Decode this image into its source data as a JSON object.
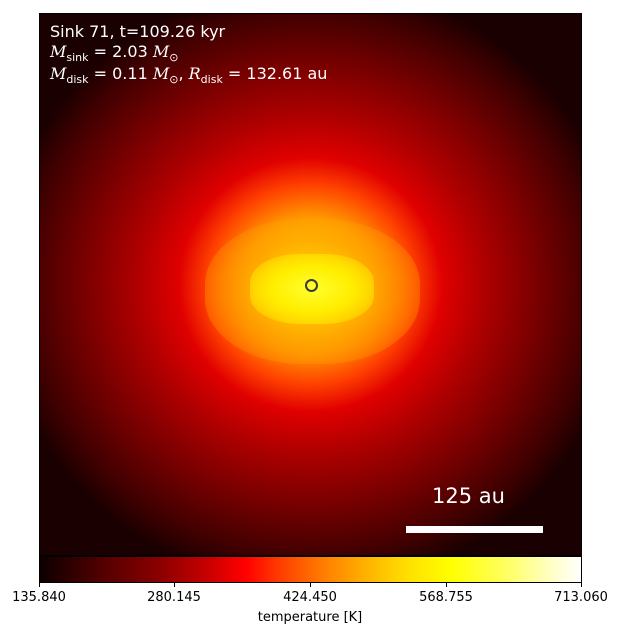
{
  "annotations": {
    "sink_line": "Sink 71, t=109.26 kyr",
    "msink_symbol": "M",
    "msink_sub": "sink",
    "msink_value": "= 2.03",
    "msink_unit": "M",
    "msun_sub": "⊙",
    "mdisk_symbol": "M",
    "mdisk_sub": "disk",
    "mdisk_value": "= 0.11",
    "mdisk_unit": "M",
    "rdisk_symbol": "R",
    "rdisk_sub": "disk",
    "rdisk_value": "= 132.61 au"
  },
  "scalebar": {
    "label": "125 au"
  },
  "colorbar": {
    "label": "temperature [K]",
    "ticks": [
      "135.840",
      "280.145",
      "424.450",
      "568.755",
      "713.060"
    ],
    "range": [
      135.84,
      713.06
    ],
    "colormap": "hot"
  },
  "colors": {
    "text_on_image": "#ffffff",
    "sink_marker": "#3a3a3a"
  }
}
